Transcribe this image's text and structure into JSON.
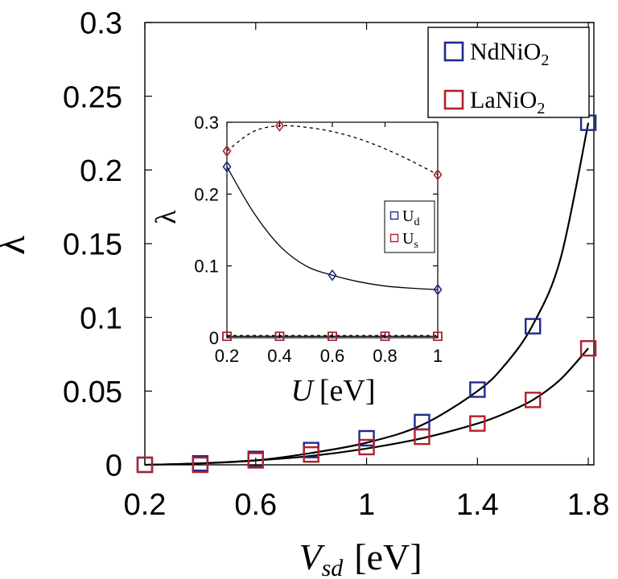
{
  "chart_data": [
    {
      "id": "main",
      "type": "scatter",
      "title": "",
      "xlabel": "V",
      "xlabel_sub": "sd",
      "xlabel_unit": "[eV]",
      "ylabel": "λ",
      "xlim": [
        0.2,
        1.82
      ],
      "ylim": [
        0,
        0.3
      ],
      "xticks": [
        0.2,
        0.6,
        1,
        1.4,
        1.8
      ],
      "xtick_labels": [
        "0.2",
        "0.6",
        "1",
        "1.4",
        "1.8"
      ],
      "yticks": [
        0,
        0.05,
        0.1,
        0.15,
        0.2,
        0.25,
        0.3
      ],
      "ytick_labels": [
        "0",
        "0.05",
        "0.1",
        "0.15",
        "0.2",
        "0.25",
        "0.3"
      ],
      "grid": false,
      "legend_position": "top-right",
      "legend": [
        {
          "base": "NdNiO",
          "sub": "2",
          "color": "#1f2a8c"
        },
        {
          "base": "LaNiO",
          "sub": "2",
          "color": "#b2202a"
        }
      ],
      "series": [
        {
          "name": "NdNiO2",
          "color": "#1f2a8c",
          "marker": "square",
          "x": [
            0.2,
            0.4,
            0.6,
            0.8,
            1.0,
            1.2,
            1.4,
            1.6,
            1.8
          ],
          "y": [
            0.0,
            0.001,
            0.004,
            0.01,
            0.018,
            0.029,
            0.051,
            0.094,
            0.232
          ]
        },
        {
          "name": "LaNiO2",
          "color": "#b2202a",
          "marker": "square",
          "x": [
            0.2,
            0.4,
            0.6,
            0.8,
            1.0,
            1.2,
            1.4,
            1.6,
            1.8
          ],
          "y": [
            0.0,
            0.0,
            0.003,
            0.007,
            0.012,
            0.019,
            0.028,
            0.044,
            0.079
          ]
        }
      ],
      "fit_curves": [
        {
          "name": "NdNiO2 fit",
          "color": "#000000",
          "style": "solid",
          "x": [
            0.2,
            0.4,
            0.6,
            0.8,
            1.0,
            1.2,
            1.4,
            1.5,
            1.6,
            1.7,
            1.8
          ],
          "y": [
            0.0,
            0.001,
            0.003,
            0.008,
            0.015,
            0.027,
            0.05,
            0.068,
            0.095,
            0.14,
            0.232
          ]
        },
        {
          "name": "LaNiO2 fit",
          "color": "#000000",
          "style": "solid",
          "x": [
            0.2,
            0.4,
            0.6,
            0.8,
            1.0,
            1.2,
            1.4,
            1.5,
            1.6,
            1.7,
            1.8
          ],
          "y": [
            0.0,
            0.001,
            0.003,
            0.006,
            0.011,
            0.018,
            0.028,
            0.035,
            0.044,
            0.058,
            0.079
          ]
        }
      ]
    },
    {
      "id": "inset",
      "type": "scatter",
      "title": "",
      "xlabel": "U",
      "xlabel_unit": "[eV]",
      "ylabel": "λ",
      "xlim": [
        0.2,
        1.0
      ],
      "ylim": [
        0,
        0.3
      ],
      "xticks": [
        0.2,
        0.4,
        0.6,
        0.8,
        1
      ],
      "xtick_labels": [
        "0.2",
        "0.4",
        "0.6",
        "0.8",
        "1"
      ],
      "yticks": [
        0,
        0.1,
        0.2,
        0.3
      ],
      "ytick_labels": [
        "0",
        "0.1",
        "0.2",
        "0.3"
      ],
      "grid": false,
      "legend_position": "right",
      "legend": [
        {
          "base": "U",
          "sub": "d",
          "color": "#1f2a8c"
        },
        {
          "base": "U",
          "sub": "s",
          "color": "#b2202a"
        }
      ],
      "series": [
        {
          "name": "U_d NdNiO2",
          "color": "#1f2a8c",
          "marker": "diamond",
          "x": [
            0.2,
            0.6,
            1.0
          ],
          "y": [
            0.238,
            0.087,
            0.067
          ]
        },
        {
          "name": "U_d LaNiO2",
          "color": "#b2202a",
          "marker": "diamond",
          "x": [
            0.2,
            0.4,
            1.0
          ],
          "y": [
            0.26,
            0.295,
            0.227
          ]
        },
        {
          "name": "U_s NdNiO2",
          "color": "#1f2a8c",
          "marker": "square",
          "x": [
            0.2,
            0.4,
            0.6,
            0.8,
            1.0
          ],
          "y": [
            0.002,
            0.002,
            0.002,
            0.002,
            0.002
          ]
        },
        {
          "name": "U_s LaNiO2",
          "color": "#b2202a",
          "marker": "square",
          "x": [
            0.2,
            0.4,
            0.6,
            0.8,
            1.0
          ],
          "y": [
            0.002,
            0.002,
            0.002,
            0.002,
            0.002
          ]
        }
      ],
      "fit_curves": [
        {
          "name": "U_d NdNiO2 fit",
          "color": "#000000",
          "style": "solid",
          "x": [
            0.2,
            0.3,
            0.4,
            0.5,
            0.6,
            0.7,
            0.8,
            0.9,
            1.0
          ],
          "y": [
            0.238,
            0.175,
            0.128,
            0.1,
            0.087,
            0.078,
            0.072,
            0.069,
            0.067
          ]
        },
        {
          "name": "U_d LaNiO2 fit",
          "color": "#000000",
          "style": "dashed",
          "x": [
            0.2,
            0.3,
            0.4,
            0.5,
            0.6,
            0.7,
            0.8,
            0.9,
            1.0
          ],
          "y": [
            0.26,
            0.287,
            0.295,
            0.293,
            0.287,
            0.277,
            0.263,
            0.246,
            0.227
          ]
        },
        {
          "name": "U_s fit",
          "color": "#000000",
          "style": "solid",
          "x": [
            0.2,
            1.0
          ],
          "y": [
            0.002,
            0.002
          ]
        },
        {
          "name": "U_s fit dashed",
          "color": "#000000",
          "style": "dashed",
          "x": [
            0.2,
            1.0
          ],
          "y": [
            0.003,
            0.003
          ]
        }
      ]
    }
  ]
}
